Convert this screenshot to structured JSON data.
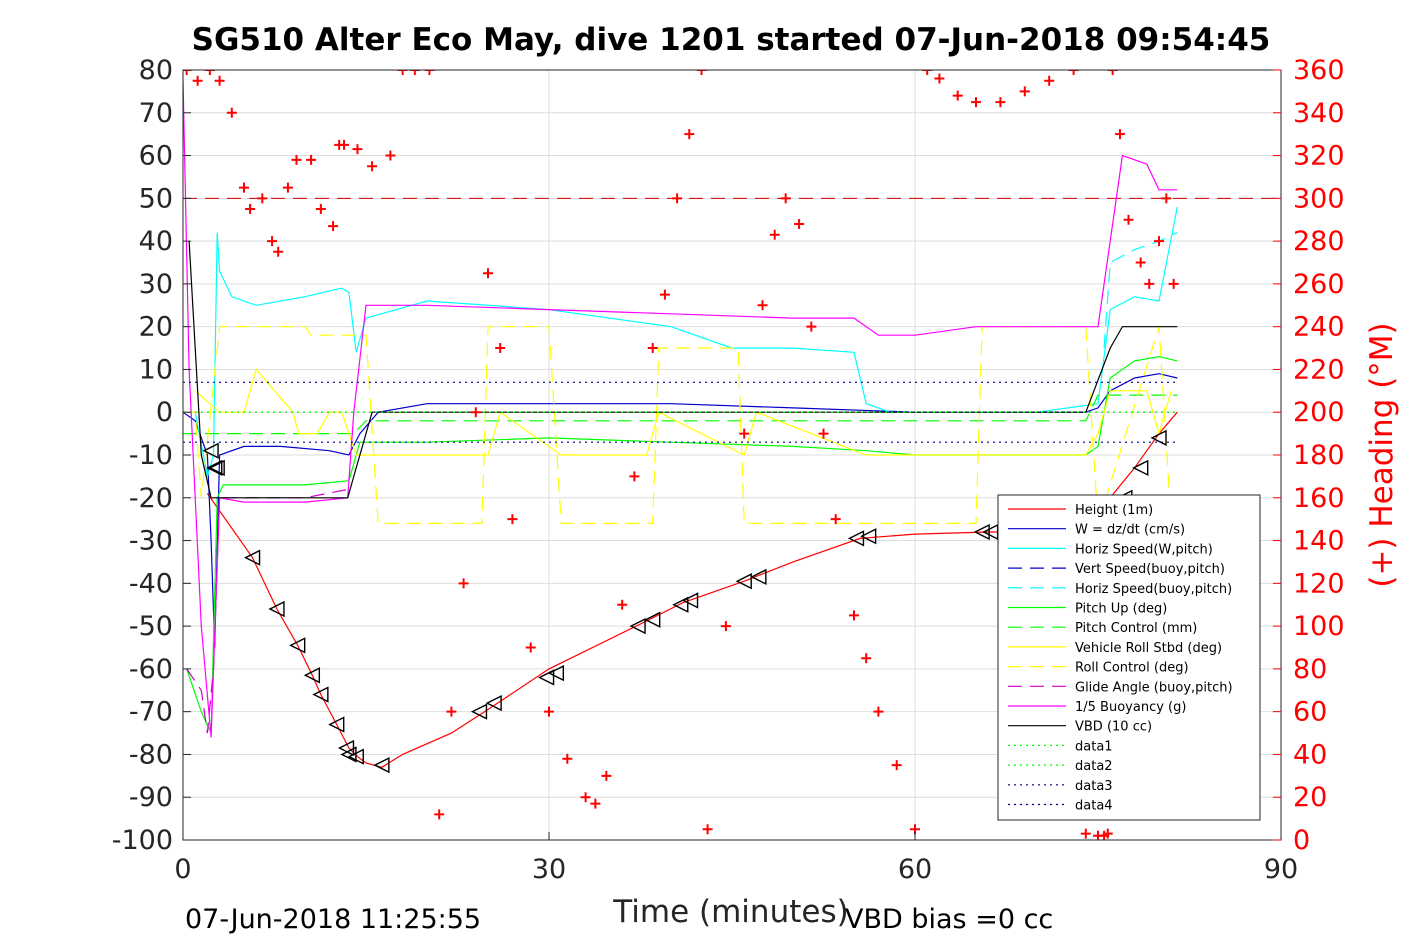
{
  "chart_data": {
    "type": "line",
    "title": "SG510 Alter Eco May, dive 1201 started 07-Jun-2018 09:54:45",
    "xlabel": "Time (minutes)",
    "ylabel_right": "(+) Heading (°M)",
    "xlim": [
      0,
      90
    ],
    "ylim_left": [
      -100,
      80
    ],
    "ylim_right": [
      0,
      360
    ],
    "x_ticks": [
      "0",
      "30",
      "60",
      "90"
    ],
    "y_ticks_left": [
      "80",
      "70",
      "60",
      "50",
      "40",
      "30",
      "20",
      "10",
      "0",
      "-10",
      "-20",
      "-30",
      "-40",
      "-50",
      "-60",
      "-70",
      "-80",
      "-90",
      "-100"
    ],
    "y_ticks_right": [
      "360",
      "340",
      "320",
      "300",
      "280",
      "260",
      "240",
      "220",
      "200",
      "180",
      "160",
      "140",
      "120",
      "100",
      "80",
      "60",
      "40",
      "20",
      "0"
    ],
    "grid": true,
    "legend_position": "lower-right",
    "footer_left": "07-Jun-2018 11:25:55",
    "footer_right": "VBD bias =0 cc",
    "series": [
      {
        "name": "Height (1m)",
        "color": "#ff0000",
        "style": "solid",
        "x": [
          2.0,
          5.7,
          7.7,
          9.4,
          10.6,
          11.3,
          12.6,
          13.6,
          14.3,
          15.0,
          16.3,
          18.0,
          22.0,
          25.0,
          30.0,
          37.5,
          41.0,
          46.0,
          50.0,
          55.5,
          60.0,
          66.0,
          70.0,
          73.0,
          76.0,
          78.0,
          80.0,
          81.5
        ],
        "y": [
          -19,
          -34,
          -46,
          -54.5,
          -61.5,
          -66,
          -73,
          -78.5,
          -80.5,
          -82,
          -83,
          -80,
          -75,
          -69.5,
          -60,
          -49.5,
          -44.5,
          -39.5,
          -35,
          -29.5,
          -28.5,
          -28,
          -28,
          -28,
          -20,
          -13,
          -5,
          0
        ]
      },
      {
        "name": "W = dz/dt (cm/s)",
        "color": "#0000cc",
        "style": "solid",
        "x": [
          0,
          1,
          2,
          2.3,
          2.6,
          3.0,
          5,
          8,
          12,
          13.6,
          14.5,
          16,
          20,
          30,
          40,
          50,
          60,
          70,
          74,
          75,
          76,
          78,
          80,
          81.5
        ],
        "y": [
          0,
          -2,
          -10,
          -30,
          -55,
          -10,
          -8,
          -8,
          -9,
          -10,
          -5,
          0,
          2,
          2,
          2,
          1,
          0,
          0,
          0,
          1,
          5,
          8,
          9,
          8
        ]
      },
      {
        "name": "Horiz Speed(W,pitch)",
        "color": "#00ffff",
        "style": "solid",
        "x": [
          1,
          2,
          2.5,
          2.8,
          3,
          4,
          6,
          10,
          13,
          13.6,
          14.2,
          15,
          20,
          30,
          40,
          45,
          50,
          55,
          56,
          58,
          65,
          70,
          75,
          76,
          78,
          80,
          81.5
        ],
        "y": [
          0,
          -15,
          -10,
          42,
          33,
          27,
          25,
          27,
          29,
          28,
          14,
          22,
          26,
          24,
          20,
          15,
          15,
          14,
          2,
          0,
          0,
          0,
          2,
          24,
          27,
          26,
          48
        ]
      },
      {
        "name": "Vert Speed(buoy,pitch)",
        "color": "#0000cc",
        "style": "dashed",
        "x": [
          0,
          90
        ],
        "y": [
          null,
          null
        ]
      },
      {
        "name": "Horiz Speed(buoy,pitch)",
        "color": "#00ffff",
        "style": "dashed",
        "x": [
          75.5,
          76,
          78,
          80,
          81.5
        ],
        "y": [
          15,
          35,
          38,
          40,
          42
        ]
      },
      {
        "name": "Pitch Up (deg)",
        "color": "#00ff00",
        "style": "solid",
        "x": [
          0.3,
          1.5,
          2.3,
          2.8,
          3.3,
          5,
          10,
          13.6,
          14.5,
          20,
          30,
          40,
          50,
          56,
          60,
          70,
          74,
          75,
          76,
          78,
          80,
          81.5
        ],
        "y": [
          -60,
          -70,
          -75,
          -20,
          -17,
          -17,
          -17,
          -16,
          -7,
          -7,
          -6,
          -7,
          -8,
          -9,
          -10,
          -10,
          -10,
          -8,
          8,
          12,
          13,
          12
        ]
      },
      {
        "name": "Pitch Control (mm)",
        "color": "#00ff00",
        "style": "dashed",
        "x": [
          0,
          14,
          15,
          74,
          75,
          81.5
        ],
        "y": [
          -5,
          -5,
          -2,
          -2,
          4,
          4
        ]
      },
      {
        "name": "Vehicle Roll Stbd (deg)",
        "color": "#ffff00",
        "style": "solid",
        "x": [
          1,
          3,
          5,
          6,
          9,
          9.5,
          11,
          12,
          13,
          13.6,
          14.2,
          15,
          20,
          25,
          26,
          31,
          32,
          38,
          39,
          46,
          47,
          56,
          57,
          73,
          74,
          75,
          76,
          79,
          80,
          81
        ],
        "y": [
          5,
          0,
          0,
          10,
          0,
          -5,
          -5,
          0,
          0,
          -5,
          -10,
          -10,
          -10,
          -10,
          0,
          -10,
          -10,
          -10,
          0,
          -10,
          0,
          -10,
          -10,
          -10,
          -10,
          -5,
          5,
          5,
          -5,
          5
        ]
      },
      {
        "name": "Roll Control (deg)",
        "color": "#ffff00",
        "style": "dashed",
        "x": [
          0,
          1,
          1.5,
          3,
          5,
          6,
          10,
          10.5,
          13,
          13.5,
          15,
          16,
          24.5,
          25,
          30,
          31,
          38.5,
          39,
          45.5,
          46,
          56,
          56.5,
          65,
          65.5,
          74,
          75,
          80,
          81
        ],
        "y": [
          0,
          0,
          -20,
          20,
          20,
          20,
          20,
          18,
          18,
          18,
          18,
          -26,
          -26,
          20,
          20,
          -26,
          -26,
          15,
          15,
          -26,
          -26,
          -26,
          -26,
          20,
          20,
          -26,
          20,
          -26
        ]
      },
      {
        "name": "Glide Angle (buoy,pitch)",
        "color": "#cc00cc",
        "style": "dashed",
        "x": [
          0.3,
          1.5,
          2.0,
          2.5,
          3.0,
          5,
          10,
          13.6
        ],
        "y": [
          -60,
          -65,
          -75,
          -60,
          -20,
          -20,
          -20,
          -18
        ]
      },
      {
        "name": "1/5 Buoyancy (g)",
        "color": "#ff00ff",
        "style": "solid",
        "x": [
          0,
          0.5,
          1.5,
          2.3,
          3,
          5,
          10,
          13.5,
          14,
          15,
          20,
          30,
          40,
          50,
          55,
          57,
          60,
          65,
          70,
          75,
          76,
          77,
          79,
          80,
          81.5
        ],
        "y": [
          78,
          10,
          -50,
          -76,
          -20,
          -21,
          -21,
          -20,
          0,
          25,
          25,
          24,
          23,
          22,
          22,
          18,
          18,
          20,
          20,
          20,
          40,
          60,
          58,
          52,
          52
        ]
      },
      {
        "name": "VBD (10 cc)",
        "color": "#000000",
        "style": "solid",
        "x": [
          0.5,
          1.5,
          2.3,
          3.0,
          13.5,
          15.5,
          74,
          76,
          77,
          81.5
        ],
        "y": [
          40,
          -10,
          -20,
          -20,
          -20,
          0,
          0,
          15,
          20,
          20
        ]
      },
      {
        "name": "data1",
        "color": "#00ff00",
        "style": "dotted",
        "x": [
          0,
          81.5
        ],
        "y": [
          0,
          0
        ]
      },
      {
        "name": "data2",
        "color": "#00ff00",
        "style": "dotted",
        "x": [
          0,
          81.5
        ],
        "y": [
          0,
          0
        ]
      },
      {
        "name": "data3",
        "color": "#000099",
        "style": "dotted",
        "x": [
          0,
          81.5
        ],
        "y": [
          7,
          7
        ]
      },
      {
        "name": "data4",
        "color": "#000099",
        "style": "dotted",
        "x": [
          0,
          81.5
        ],
        "y": [
          -7,
          -7
        ]
      }
    ],
    "heading_limit_line": {
      "color": "#cc0000",
      "style": "dashed",
      "y_right": 300
    },
    "heading_series": {
      "name": "(+) Heading (°M)",
      "color": "#ff0000",
      "marker": "+",
      "x": [
        0.3,
        1.2,
        2.2,
        3.0,
        4.0,
        5.0,
        5.5,
        6.5,
        7.3,
        7.8,
        8.6,
        9.3,
        10.5,
        11.3,
        12.3,
        12.8,
        13.2,
        14.3,
        15.5,
        17.0,
        18.0,
        19.0,
        20.2,
        21.0,
        22.0,
        23.0,
        24.0,
        25.0,
        26.0,
        27.0,
        28.5,
        30.0,
        31.5,
        33.0,
        33.8,
        34.7,
        36.0,
        37.0,
        38.5,
        39.5,
        40.5,
        41.5,
        42.5,
        43.0,
        44.5,
        46.0,
        47.5,
        48.5,
        49.4,
        50.5,
        51.5,
        52.5,
        53.5,
        55.0,
        56.0,
        57.0,
        58.5,
        60.0,
        61.0,
        62.0,
        63.5,
        65.0,
        67.0,
        69.0,
        71.0,
        73.0,
        74.0,
        75.0,
        75.5,
        75.8,
        76.2,
        76.8,
        77.5,
        78.5,
        79.2,
        80.0,
        80.6,
        81.2
      ],
      "y": [
        360,
        355,
        360,
        355,
        340,
        305,
        295,
        300,
        280,
        275,
        305,
        318,
        318,
        295,
        287,
        325,
        325,
        323,
        315,
        320,
        360,
        360,
        360,
        12,
        60,
        120,
        200,
        265,
        230,
        150,
        90,
        60,
        38,
        20,
        17,
        30,
        110,
        170,
        230,
        255,
        300,
        330,
        360,
        5,
        100,
        190,
        250,
        283,
        300,
        288,
        240,
        190,
        150,
        105,
        85,
        60,
        35,
        5,
        360,
        356,
        348,
        345,
        345,
        350,
        355,
        360,
        3,
        2,
        2,
        3,
        360,
        330,
        290,
        270,
        260,
        280,
        300,
        260
      ]
    },
    "dive_markers": {
      "marker": "triangle",
      "color": "#000000",
      "x": [
        2.3,
        2.6,
        2.8,
        5.7,
        7.7,
        9.4,
        10.6,
        11.3,
        12.6,
        13.4,
        13.6,
        14.2,
        16.3,
        24.3,
        25.5,
        29.8,
        30.6,
        37.3,
        38.5,
        40.8,
        41.6,
        46.0,
        47.2,
        55.2,
        56.2,
        65.5,
        66.2,
        77.2,
        78.5,
        80.0
      ],
      "y": [
        -9,
        -13,
        -13,
        -34,
        -46,
        -54.5,
        -61.5,
        -66,
        -73,
        -78.5,
        -80,
        -80.5,
        -82.5,
        -70,
        -68,
        -62,
        -61,
        -50,
        -48.5,
        -45,
        -44,
        -39.5,
        -38.5,
        -29.5,
        -29,
        -28,
        -28,
        -20,
        -13,
        -6
      ]
    }
  }
}
